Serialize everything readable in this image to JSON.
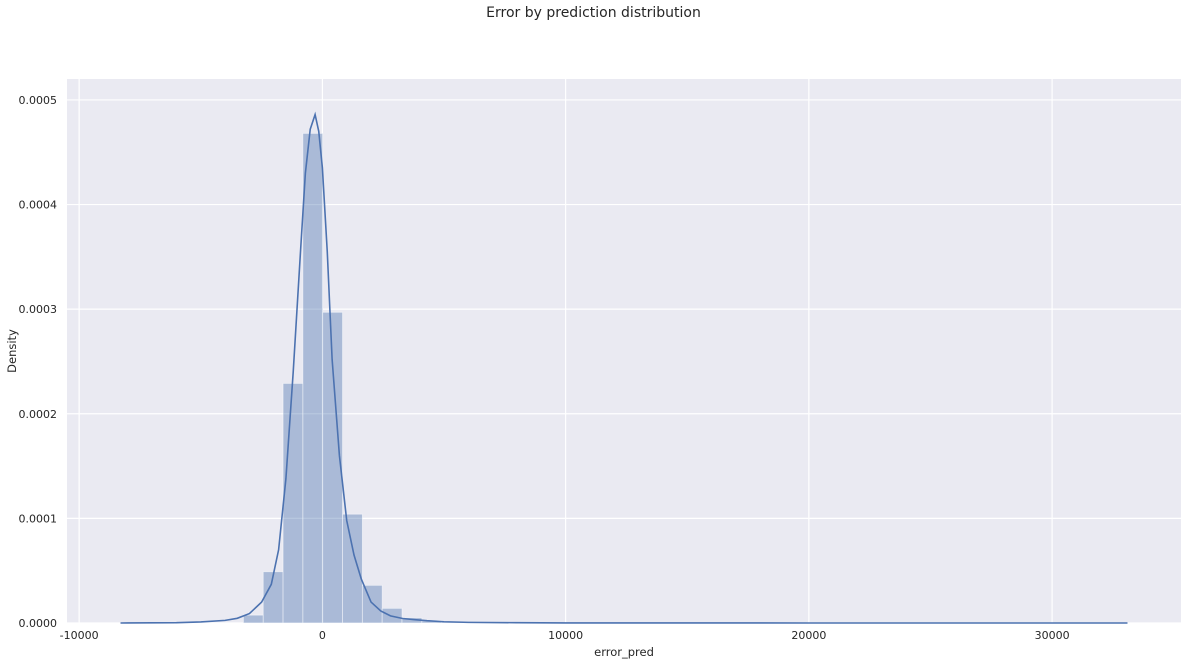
{
  "chart_data": {
    "type": "bar",
    "title": "Error by prediction distribution",
    "xlabel": "error_pred",
    "ylabel": "Density",
    "xlim": [
      -10500,
      35300
    ],
    "ylim": [
      0,
      0.00052
    ],
    "xticks": [
      -10000,
      0,
      10000,
      20000,
      30000
    ],
    "xtick_labels": [
      "-10000",
      "0",
      "10000",
      "20000",
      "30000"
    ],
    "yticks": [
      0,
      0.0001,
      0.0002,
      0.0003,
      0.0004,
      0.0005
    ],
    "ytick_labels": [
      "0.0000",
      "0.0001",
      "0.0002",
      "0.0003",
      "0.0004",
      "0.0005"
    ],
    "grid": true,
    "background": "#eaeaf2",
    "bar_color": "#4c72b0",
    "line_color": "#4c72b0",
    "histogram": {
      "bin_width": 815,
      "bins": [
        {
          "start": -3247,
          "density": 7.5e-06
        },
        {
          "start": -2432,
          "density": 4.9e-05
        },
        {
          "start": -1617,
          "density": 0.000229
        },
        {
          "start": -802,
          "density": 0.000468
        },
        {
          "start": 13,
          "density": 0.000297
        },
        {
          "start": 828,
          "density": 0.000104
        },
        {
          "start": 1643,
          "density": 3.6e-05
        },
        {
          "start": 2458,
          "density": 1.4e-05
        },
        {
          "start": 3273,
          "density": 5e-06
        },
        {
          "start": 4088,
          "density": 2e-06
        },
        {
          "start": 4903,
          "density": 1e-06
        },
        {
          "start": 5718,
          "density": 5e-07
        }
      ]
    },
    "kde": {
      "x": [
        -8300,
        -6000,
        -5000,
        -4000,
        -3500,
        -3000,
        -2500,
        -2100,
        -1800,
        -1500,
        -1200,
        -900,
        -700,
        -500,
        -300,
        -150,
        0,
        200,
        400,
        700,
        1000,
        1300,
        1600,
        2000,
        2400,
        2800,
        3300,
        3800,
        4300,
        5000,
        6000,
        8000,
        10000,
        15000,
        20000,
        25000,
        30000,
        33100
      ],
      "y": [
        0,
        3e-07,
        1e-06,
        2.5e-06,
        4.5e-06,
        9e-06,
        2e-05,
        3.7e-05,
        7e-05,
        0.000138,
        0.00024,
        0.000355,
        0.00043,
        0.000472,
        0.000486,
        0.00047,
        0.000435,
        0.000355,
        0.000252,
        0.00016,
        9.8e-05,
        6.5e-05,
        4.2e-05,
        2e-05,
        1.15e-05,
        6.8e-06,
        4.3e-06,
        3.2e-06,
        2.2e-06,
        1.2e-06,
        6e-07,
        3e-07,
        1e-07,
        5e-08,
        0,
        0,
        0,
        0
      ]
    }
  }
}
